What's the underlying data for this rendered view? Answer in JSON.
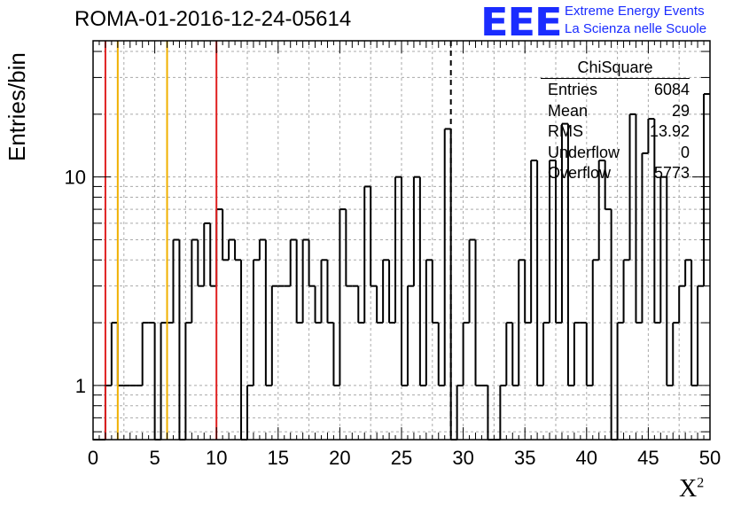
{
  "title": "ROMA-01-2016-12-24-05614",
  "logo": {
    "text": "EEE",
    "line1": "Extreme Energy Events",
    "line2": "La Scienza nelle Scuole",
    "color": "#1a2cff"
  },
  "stats_box": {
    "header": "ChiSquare",
    "rows": [
      {
        "label": "Entries",
        "value": "6084"
      },
      {
        "label": "Mean",
        "value": "29"
      },
      {
        "label": "RMS",
        "value": "13.92"
      },
      {
        "label": "Underflow",
        "value": "0"
      },
      {
        "label": "Overflow",
        "value": "5773"
      }
    ]
  },
  "chart_data": {
    "type": "histogram",
    "ylabel": "Entries/bin",
    "xlabel": "X",
    "xlabel_superscript": "2",
    "xlim": [
      0,
      50
    ],
    "ylim": [
      0.55,
      45
    ],
    "yscale": "log",
    "x_ticks": [
      "0",
      "5",
      "10",
      "15",
      "20",
      "25",
      "30",
      "35",
      "40",
      "45",
      "50"
    ],
    "y_ticks": [
      {
        "value": 1,
        "label": "1"
      },
      {
        "value": 10,
        "label": "10"
      }
    ],
    "grid": true,
    "bin_width": 0.5,
    "bin_start": 0,
    "counts": [
      0,
      0,
      1,
      2,
      1,
      1,
      1,
      1,
      2,
      2,
      0,
      2,
      2,
      5,
      0,
      2,
      5,
      3,
      6,
      3,
      7,
      4,
      5,
      4,
      0,
      1,
      4,
      5,
      1,
      3,
      3,
      3,
      5,
      2,
      5,
      3,
      2,
      4,
      2,
      1,
      7,
      3,
      3,
      2,
      9,
      3,
      2,
      4,
      2,
      10,
      1,
      3,
      10,
      1,
      4,
      2,
      1,
      17,
      0,
      1,
      2,
      5,
      1,
      1,
      0,
      0,
      1,
      2,
      1,
      4,
      2,
      12,
      1,
      2,
      12,
      2,
      18,
      1,
      2,
      2,
      1,
      4,
      12,
      7,
      0,
      2,
      4,
      20,
      2,
      13,
      19,
      2,
      10,
      1,
      2,
      3,
      4,
      1,
      3,
      25
    ],
    "vlines": [
      {
        "x": 1,
        "color": "#e02020",
        "style": "solid"
      },
      {
        "x": 2,
        "color": "#f0b000",
        "style": "solid"
      },
      {
        "x": 6,
        "color": "#f0b000",
        "style": "solid"
      },
      {
        "x": 10,
        "color": "#e02020",
        "style": "solid"
      },
      {
        "x": 29,
        "color": "#000000",
        "style": "dashed"
      }
    ]
  }
}
